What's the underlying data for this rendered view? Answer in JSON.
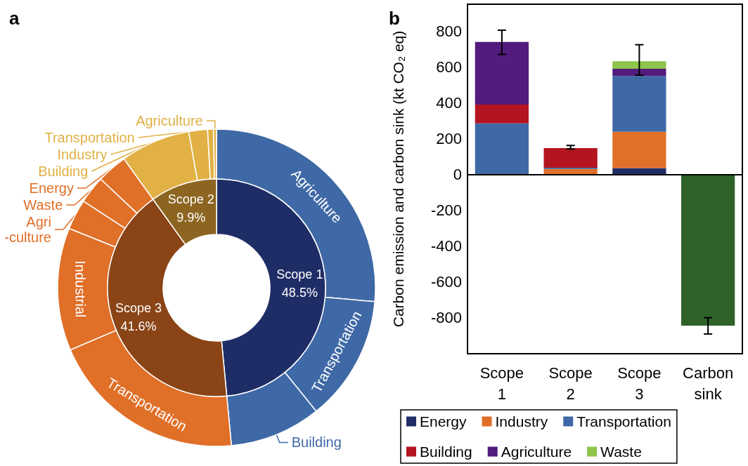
{
  "chart_data": [
    {
      "type": "donut",
      "title": "a",
      "categories": [
        "Scope 1",
        "Scope 3",
        "Scope 2"
      ],
      "values": [
        48.5,
        41.6,
        9.9
      ],
      "value_labels": [
        "48.5%",
        "41.6%",
        "9.9%"
      ],
      "colors": [
        "#1f2d66",
        "#8a4416",
        "#8c6520"
      ]
    },
    {
      "type": "donut",
      "categories": [
        "Agriculture",
        "Transportation",
        "Building",
        "Transportation",
        "Industrial",
        "Agri\n-culture",
        "Waste",
        "Energy",
        "Building",
        "Industry",
        "Transportation",
        "Agriculture"
      ],
      "values": [
        26.4,
        12.8,
        9.3,
        20.1,
        12.5,
        3.1,
        2.8,
        3.1,
        7.1,
        1.9,
        0.6,
        0.3
      ],
      "colors": [
        "#3f69a6",
        "#3f69a6",
        "#3f69a6",
        "#e06f28",
        "#e06f28",
        "#e06f28",
        "#e06f28",
        "#e06f28",
        "#e2b145",
        "#e2b145",
        "#e2b145",
        "#e2b145"
      ]
    },
    {
      "type": "bar",
      "title": "b",
      "categories": [
        "Scope\n1",
        "Scope\n2",
        "Scope\n3",
        "Carbon\nsink"
      ],
      "stacked": true,
      "ylabel": "Carbon emission and carbon sink (kt CO₂ eq)",
      "ylim": [
        -1000,
        950
      ],
      "yticks": [
        -800,
        -600,
        -400,
        -200,
        0,
        200,
        400,
        600,
        800
      ],
      "legend": "bottom",
      "ref_lines": [
        {
          "axis": "y",
          "value": 0
        }
      ],
      "series": [
        {
          "name": "Energy",
          "color": "#1f2d66",
          "values": [
            null,
            null,
            36,
            null
          ]
        },
        {
          "name": "Industry",
          "color": "#e06f28",
          "values": [
            null,
            31,
            202,
            null
          ]
        },
        {
          "name": "Transportation",
          "color": "#3f69a6",
          "values": [
            285,
            7,
            312,
            null
          ]
        },
        {
          "name": "Building",
          "color": "#b3141f",
          "values": [
            105,
            109,
            null,
            null
          ],
          "errors": [
            null,
            [
              142,
              162
            ],
            null,
            null
          ]
        },
        {
          "name": "Agriculture",
          "color": "#531b7d",
          "values": [
            350,
            null,
            40,
            null
          ],
          "errors": [
            [
              670,
              805
            ],
            null,
            null,
            null
          ]
        },
        {
          "name": "Waste",
          "color": "#8cc44c",
          "values": [
            null,
            null,
            42,
            null
          ],
          "errors": [
            null,
            null,
            [
              554,
              724
            ],
            null
          ]
        },
        {
          "color": "#2e6229",
          "values": [
            null,
            null,
            null,
            -843
          ],
          "errors": [
            null,
            null,
            null,
            [
              -890,
              -799
            ]
          ]
        }
      ]
    }
  ]
}
